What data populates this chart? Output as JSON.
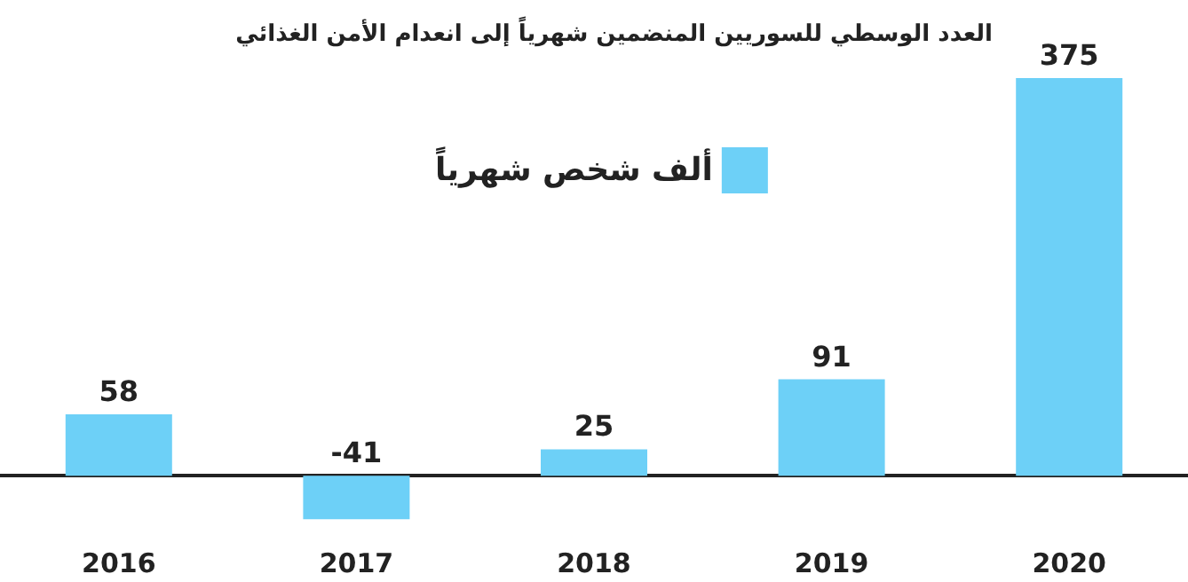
{
  "chart_data": {
    "type": "bar",
    "title": "العدد الوسطي للسوريين المنضمين شهرياً إلى انعدام الأمن الغذائي",
    "categories": [
      "2016",
      "2017",
      "2018",
      "2019",
      "2020"
    ],
    "series": [
      {
        "name": "ألف شخص شهرياً",
        "color": "#6dd0f7",
        "values": [
          58,
          -41,
          25,
          91,
          375
        ]
      }
    ],
    "data_labels": true,
    "legend": "top",
    "grid": false
  }
}
